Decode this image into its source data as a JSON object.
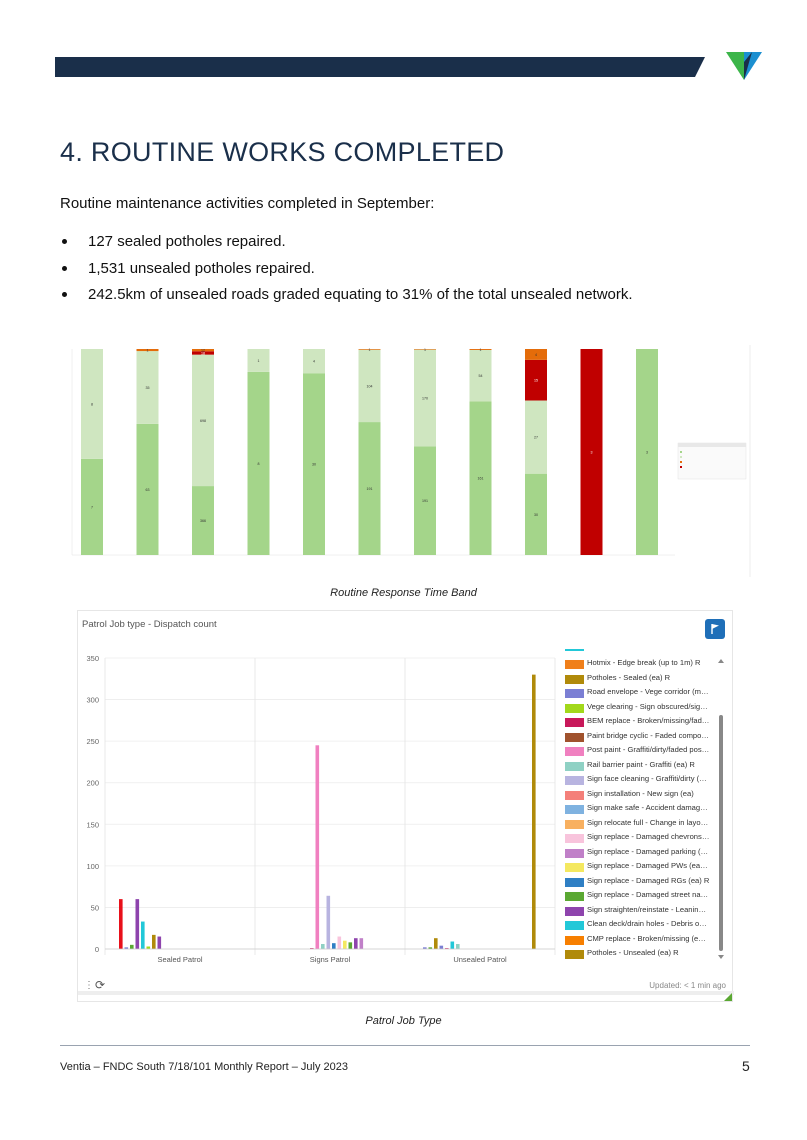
{
  "header": {
    "bar_color": "#1a2f4a",
    "logo_colors": [
      "#3cb54a",
      "#1b8fd0",
      "#1a2f4a"
    ]
  },
  "section": {
    "title": "4. ROUTINE WORKS COMPLETED",
    "intro": "Routine maintenance activities completed in September:",
    "bullets": [
      "127 sealed potholes repaired.",
      "1,531 unsealed potholes repaired.",
      "242.5km of unsealed roads graded equating to 31% of the total unsealed network."
    ]
  },
  "chart_data": [
    {
      "type": "bar",
      "stacked": true,
      "percent_stacked": true,
      "caption": "Routine Response Time Band",
      "segment_colors": [
        "#a4d58a",
        "#cfe6c0",
        "#e46c0a",
        "#c00000"
      ],
      "legend_placement": "right",
      "bars": [
        {
          "segments": [
            {
              "value": 7,
              "band": 0
            },
            {
              "value": 8,
              "band": 1
            }
          ]
        },
        {
          "segments": [
            {
              "value": 63,
              "band": 0
            },
            {
              "value": 35,
              "band": 1
            },
            {
              "value": 1,
              "band": 2
            }
          ]
        },
        {
          "segments": [
            {
              "value": 366,
              "band": 0
            },
            {
              "value": 698,
              "band": 1
            },
            {
              "value": 18,
              "band": 3
            },
            {
              "value": 12,
              "band": 2
            }
          ]
        },
        {
          "segments": [
            {
              "value": 8,
              "band": 0
            },
            {
              "value": 1,
              "band": 1
            }
          ]
        },
        {
          "segments": [
            {
              "value": 30,
              "band": 0
            },
            {
              "value": 4,
              "band": 1
            }
          ]
        },
        {
          "segments": [
            {
              "value": 191,
              "band": 0
            },
            {
              "value": 104,
              "band": 1
            },
            {
              "value": 1,
              "band": 2
            }
          ]
        },
        {
          "segments": [
            {
              "value": 191,
              "band": 0
            },
            {
              "value": 170,
              "band": 1
            },
            {
              "value": 1,
              "band": 2
            }
          ]
        },
        {
          "segments": [
            {
              "value": 161,
              "band": 0
            },
            {
              "value": 54,
              "band": 1
            },
            {
              "value": 1,
              "band": 2
            }
          ]
        },
        {
          "segments": [
            {
              "value": 30,
              "band": 0
            },
            {
              "value": 27,
              "band": 1
            },
            {
              "value": 15,
              "band": 3
            },
            {
              "value": 4,
              "band": 2
            }
          ]
        },
        {
          "segments": [
            {
              "value": 3,
              "band": 3
            }
          ]
        },
        {
          "segments": [
            {
              "value": 3,
              "band": 0
            }
          ]
        }
      ]
    },
    {
      "type": "bar",
      "title": "Patrol Job type - Dispatch count",
      "caption": "Patrol Job Type",
      "categories": [
        "Sealed Patrol",
        "Signs Patrol",
        "Unsealed Patrol"
      ],
      "ylim": [
        0,
        350
      ],
      "yticks": [
        0,
        50,
        100,
        150,
        200,
        250,
        300,
        350
      ],
      "grid": true,
      "legend_placement": "right",
      "legend": [
        {
          "label": "Hotmix - Edge break (up to 1m) R",
          "color": "#f07f1a"
        },
        {
          "label": "Potholes - Sealed (ea) R",
          "color": "#b08a0a"
        },
        {
          "label": "Road envelope - Vege corridor (m) R",
          "color": "#7b7fd4"
        },
        {
          "label": "Vege clearing - Sign obscured/sightli...",
          "color": "#a2d81b"
        },
        {
          "label": "BEM replace - Broken/missing/faded ...",
          "color": "#c8185a"
        },
        {
          "label": "Paint bridge cyclic - Faded compone...",
          "color": "#a0522d"
        },
        {
          "label": "Post paint - Graffiti/dirty/faded post (e...",
          "color": "#f080c0"
        },
        {
          "label": "Rail barrier paint - Graffiti (ea) R",
          "color": "#8fd1c4"
        },
        {
          "label": "Sign face cleaning - Graffiti/dirty (ea) R",
          "color": "#b8b4e0"
        },
        {
          "label": "Sign installation - New sign (ea)",
          "color": "#f4807a"
        },
        {
          "label": "Sign make safe - Accident damage (e...",
          "color": "#7fb2e0"
        },
        {
          "label": "Sign relocate full - Change in layout (...",
          "color": "#f8b060"
        },
        {
          "label": "Sign replace - Damaged chevrons (e...",
          "color": "#f8c4dc"
        },
        {
          "label": "Sign replace - Damaged parking (ea) R",
          "color": "#c080c8"
        },
        {
          "label": "Sign replace - Damaged PWs (ea) R",
          "color": "#f4e860"
        },
        {
          "label": "Sign replace - Damaged RGs (ea) R",
          "color": "#2f7fc4"
        },
        {
          "label": "Sign replace - Damaged street name ...",
          "color": "#5aa832"
        },
        {
          "label": "Sign straighten/reinstate - Leaning (e...",
          "color": "#8e44ad"
        },
        {
          "label": "Clean deck/drain holes - Debris on br...",
          "color": "#22c8d8"
        },
        {
          "label": "CMP replace - Broken/missing (ea) R",
          "color": "#f77f00"
        },
        {
          "label": "Potholes - Unsealed (ea) R",
          "color": "#b08a0a"
        }
      ],
      "series_values": [
        {
          "category": "Sealed Patrol",
          "bars": [
            {
              "value": 60,
              "color": "#e8101a"
            },
            {
              "value": 2,
              "color": "#7b7fd4"
            },
            {
              "value": 5,
              "color": "#5aa832"
            },
            {
              "value": 60,
              "color": "#8e44ad"
            },
            {
              "value": 33,
              "color": "#22c8d8"
            },
            {
              "value": 3,
              "color": "#a2d81b"
            },
            {
              "value": 17,
              "color": "#b08a0a"
            },
            {
              "value": 15,
              "color": "#8e44ad"
            }
          ]
        },
        {
          "category": "Signs Patrol",
          "bars": [
            {
              "value": 1,
              "color": "#c8185a"
            },
            {
              "value": 245,
              "color": "#f080c0"
            },
            {
              "value": 6,
              "color": "#8fd1c4"
            },
            {
              "value": 64,
              "color": "#b8b4e0"
            },
            {
              "value": 7,
              "color": "#2f7fc4"
            },
            {
              "value": 15,
              "color": "#f8c4dc"
            },
            {
              "value": 10,
              "color": "#f4e860"
            },
            {
              "value": 8,
              "color": "#5aa832"
            },
            {
              "value": 13,
              "color": "#8e44ad"
            },
            {
              "value": 13,
              "color": "#c080c8"
            }
          ]
        },
        {
          "category": "Unsealed Patrol",
          "bars": [
            {
              "value": 2,
              "color": "#7b7fd4"
            },
            {
              "value": 2,
              "color": "#5aa832"
            },
            {
              "value": 13,
              "color": "#b08a0a"
            },
            {
              "value": 4,
              "color": "#7b7fd4"
            },
            {
              "value": 1,
              "color": "#c8185a"
            },
            {
              "value": 9,
              "color": "#22c8d8"
            },
            {
              "value": 6,
              "color": "#8fd1c4"
            },
            {
              "value": 330,
              "color": "#b08a0a"
            }
          ]
        }
      ],
      "updated": "Updated: < 1 min ago",
      "flag_color": "#1f6fb8"
    }
  ],
  "footer": {
    "text": "Ventia – FNDC South 7/18/101 Monthly Report – July 2023",
    "page_number": "5"
  }
}
